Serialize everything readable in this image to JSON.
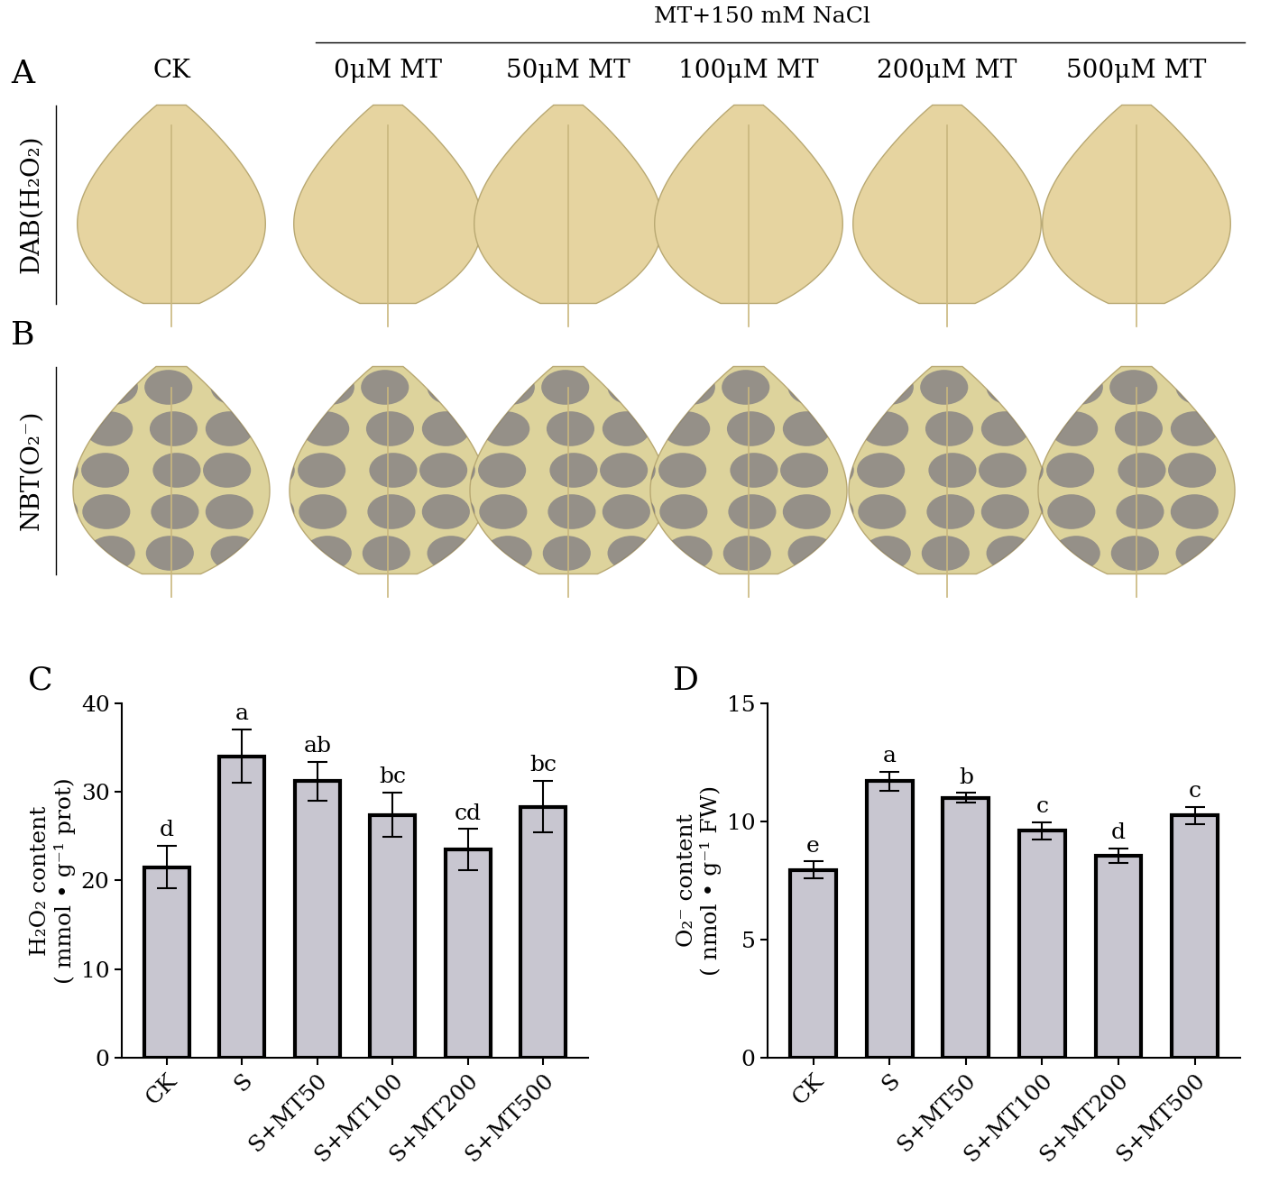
{
  "photo_panels": {
    "group_label": "MT+150 mM NaCl",
    "columns": [
      "CK",
      "0μM MT",
      "50μM MT",
      "100μM MT",
      "200μM MT",
      "500μM MT"
    ],
    "rows": [
      {
        "panel": "A",
        "label": "DAB(H₂O₂)"
      },
      {
        "panel": "B",
        "label": "NBT(O₂⁻)"
      }
    ]
  },
  "chart_data": [
    {
      "type": "bar",
      "title": "C",
      "categories": [
        "CK",
        "S",
        "S+MT50",
        "S+MT100",
        "S+MT200",
        "S+MT500"
      ],
      "values": [
        21.5,
        34.0,
        31.2,
        27.4,
        23.5,
        28.3
      ],
      "errors": [
        2.4,
        3.0,
        2.2,
        2.5,
        2.3,
        2.9
      ],
      "annotations": [
        "d",
        "a",
        "ab",
        "bc",
        "cd",
        "bc"
      ],
      "y_label": "H₂O₂ content\n( mmol • g⁻¹ prot)",
      "color": "#c8c6d0",
      "ylim": [
        0,
        40
      ],
      "yticks": [
        0,
        10,
        20,
        30,
        40
      ]
    },
    {
      "type": "bar",
      "title": "D",
      "categories": [
        "CK",
        "S",
        "S+MT50",
        "S+MT100",
        "S+MT200",
        "S+MT500"
      ],
      "values": [
        7.95,
        11.7,
        11.0,
        9.6,
        8.55,
        10.25
      ],
      "errors": [
        0.35,
        0.4,
        0.2,
        0.35,
        0.3,
        0.35
      ],
      "annotations": [
        "e",
        "a",
        "b",
        "c",
        "d",
        "c"
      ],
      "y_label": "O₂⁻ content\n( nmol • g⁻¹ FW)",
      "color": "#c8c6d0",
      "ylim": [
        0,
        15
      ],
      "yticks": [
        0,
        5,
        10,
        15
      ]
    }
  ]
}
